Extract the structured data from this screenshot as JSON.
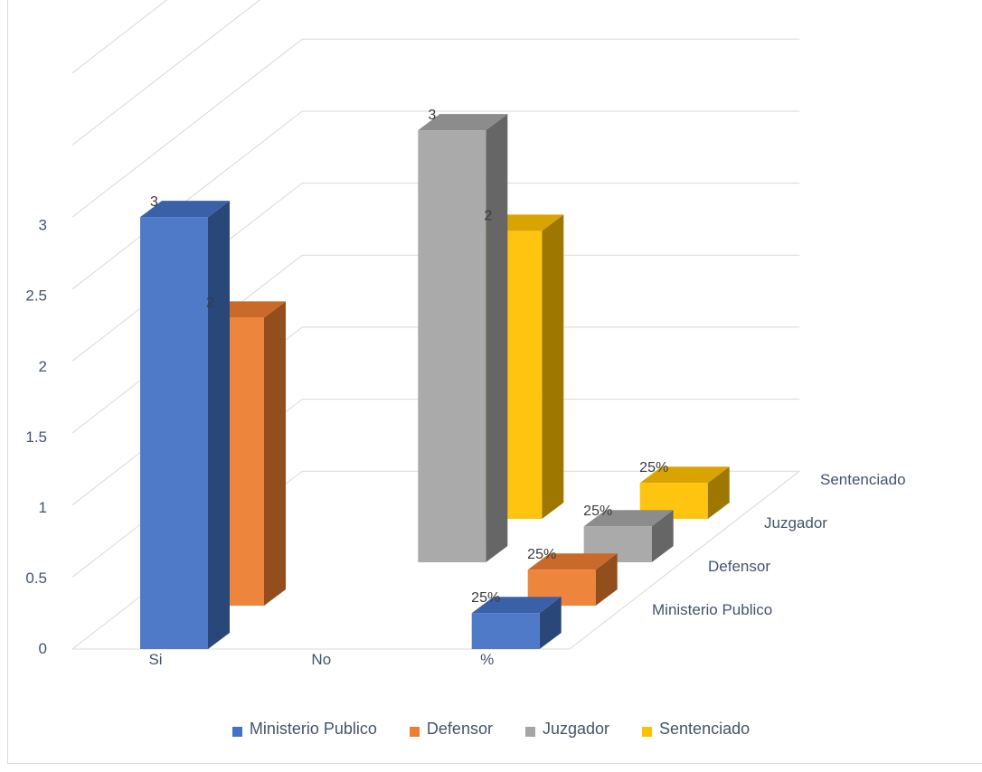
{
  "chart_data": {
    "type": "bar",
    "categories": [
      "Si",
      "No",
      "%"
    ],
    "series": [
      {
        "name": "Ministerio Publico",
        "values": [
          3,
          0,
          0.25
        ],
        "data_labels": [
          "3",
          "",
          "25%"
        ]
      },
      {
        "name": "Defensor",
        "values": [
          2,
          0,
          0.25
        ],
        "data_labels": [
          "2",
          "",
          "25%"
        ]
      },
      {
        "name": "Juzgador",
        "values": [
          0,
          3,
          0.25
        ],
        "data_labels": [
          "",
          "3",
          "25%"
        ]
      },
      {
        "name": "Sentenciado",
        "values": [
          0,
          2,
          0.25
        ],
        "data_labels": [
          "",
          "2",
          "25%"
        ]
      }
    ],
    "depth_labels": [
      "Ministerio Publico",
      "Defensor",
      "Juzgador",
      "Sentenciado"
    ],
    "y_ticks": [
      "0",
      "0.5",
      "1",
      "1.5",
      "2",
      "2.5",
      "3"
    ],
    "ylim": [
      0,
      3
    ],
    "grid": true,
    "legend_position": "bottom",
    "colors": {
      "Ministerio Publico": "#4472c4",
      "Defensor": "#ed7d31",
      "Juzgador": "#a5a5a5",
      "Sentenciado": "#ffc000"
    }
  }
}
